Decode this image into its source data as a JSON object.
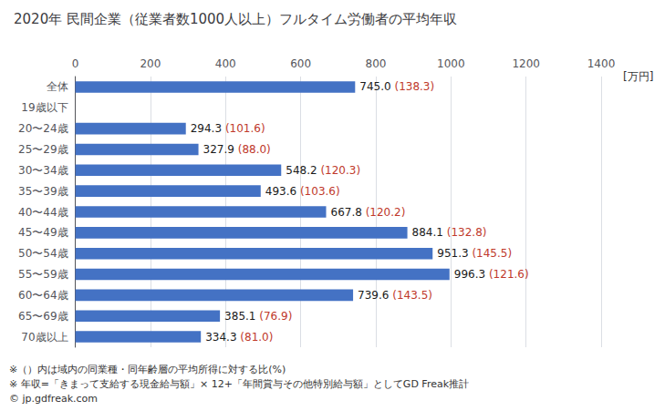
{
  "chart_data": {
    "type": "bar",
    "orientation": "horizontal",
    "title": "2020年 民間企業（従業者数1000人以上）フルタイム労働者の平均年収",
    "xlabel": "[万円]",
    "categories": [
      "全体",
      "19歳以下",
      "20〜24歳",
      "25〜29歳",
      "30〜34歳",
      "35〜39歳",
      "40〜44歳",
      "45〜49歳",
      "50〜54歳",
      "55〜59歳",
      "60〜64歳",
      "65〜69歳",
      "70歳以上"
    ],
    "values": [
      745.0,
      0,
      294.3,
      327.9,
      548.2,
      493.6,
      667.8,
      884.1,
      951.3,
      996.3,
      739.6,
      385.1,
      334.3
    ],
    "value_labels": [
      "745.0",
      null,
      "294.3",
      "327.9",
      "548.2",
      "493.6",
      "667.8",
      "884.1",
      "951.3",
      "996.3",
      "739.6",
      "385.1",
      "334.3"
    ],
    "ratios": [
      138.3,
      null,
      101.6,
      88.0,
      120.3,
      103.6,
      120.2,
      132.8,
      145.5,
      121.6,
      143.5,
      76.9,
      81.0
    ],
    "ratio_labels": [
      "(138.3)",
      null,
      "(101.6)",
      "(88.0)",
      "(120.3)",
      "(103.6)",
      "(120.2)",
      "(132.8)",
      "(145.5)",
      "(121.6)",
      "(143.5)",
      "(76.9)",
      "(81.0)"
    ],
    "color": "#4472C4",
    "ratio_color": "#C0392B",
    "data_labels": true,
    "xlim": [
      0,
      1400
    ],
    "xticks": [
      0,
      200,
      400,
      600,
      800,
      1000,
      1200,
      1400
    ],
    "grid": true,
    "annotations": [
      "※（）内は域内の同業種・同年齢層の平均所得に対する比(%)",
      "※ 年収=「きまって支給する現金給与額」× 12+「年間賞与その他特別給与額」としてGD Freak推計",
      "© jp.gdfreak.com"
    ]
  }
}
